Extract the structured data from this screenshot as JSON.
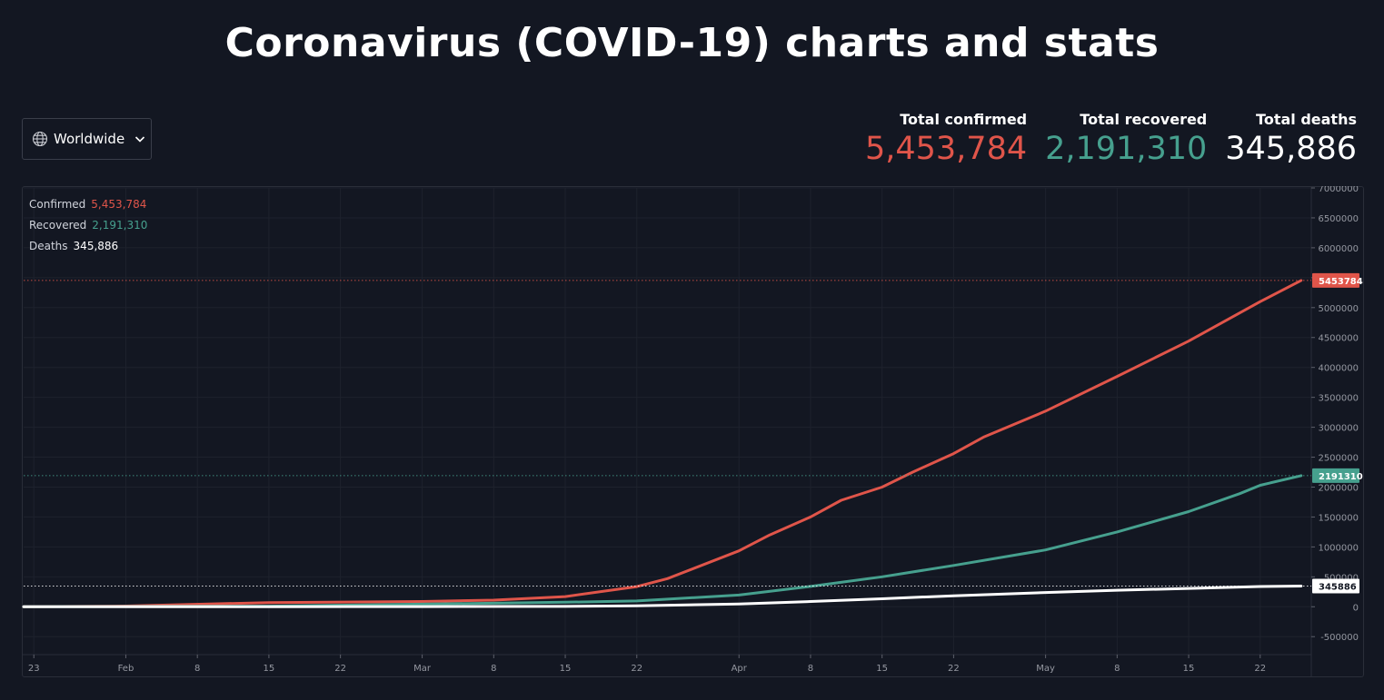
{
  "title": "Coronavirus (COVID-19) charts and stats",
  "region_selector": {
    "label": "Worldwide",
    "icon": "globe-icon",
    "chevron": "chevron-down-icon"
  },
  "stats": [
    {
      "label": "Total confirmed",
      "value": "5,453,784",
      "color": "#e0554a"
    },
    {
      "label": "Total recovered",
      "value": "2,191,310",
      "color": "#46a08e"
    },
    {
      "label": "Total deaths",
      "value": "345,886",
      "color": "#ffffff"
    }
  ],
  "legend": [
    {
      "name": "Confirmed",
      "value": "5,453,784",
      "color": "#e0554a"
    },
    {
      "name": "Recovered",
      "value": "2,191,310",
      "color": "#46a08e"
    },
    {
      "name": "Deaths",
      "value": "345,886",
      "color": "#ffffff"
    }
  ],
  "chart_data": {
    "type": "line",
    "x_ticks": [
      {
        "label": "23",
        "date": "2020-01-23"
      },
      {
        "label": "Feb",
        "date": "2020-02-01"
      },
      {
        "label": "8",
        "date": "2020-02-08"
      },
      {
        "label": "15",
        "date": "2020-02-15"
      },
      {
        "label": "22",
        "date": "2020-02-22"
      },
      {
        "label": "Mar",
        "date": "2020-03-01"
      },
      {
        "label": "8",
        "date": "2020-03-08"
      },
      {
        "label": "15",
        "date": "2020-03-15"
      },
      {
        "label": "22",
        "date": "2020-03-22"
      },
      {
        "label": "Apr",
        "date": "2020-04-01"
      },
      {
        "label": "8",
        "date": "2020-04-08"
      },
      {
        "label": "15",
        "date": "2020-04-15"
      },
      {
        "label": "22",
        "date": "2020-04-22"
      },
      {
        "label": "May",
        "date": "2020-05-01"
      },
      {
        "label": "8",
        "date": "2020-05-08"
      },
      {
        "label": "15",
        "date": "2020-05-15"
      },
      {
        "label": "22",
        "date": "2020-05-22"
      }
    ],
    "y_ticks": [
      "7000000",
      "6500000",
      "6000000",
      "5500000",
      "5000000",
      "4500000",
      "4000000",
      "3500000",
      "3000000",
      "2500000",
      "2000000",
      "1500000",
      "1000000",
      "500000",
      "0",
      "-500000"
    ],
    "y_tick_values": [
      7000000,
      6500000,
      6000000,
      5500000,
      5000000,
      4500000,
      4000000,
      3500000,
      3000000,
      2500000,
      2000000,
      1500000,
      1000000,
      500000,
      0,
      -500000
    ],
    "ylim": [
      -800000,
      7000000
    ],
    "xlim": [
      "2020-01-22",
      "2020-05-27"
    ],
    "grid": true,
    "legend_position": "top-left",
    "series": [
      {
        "name": "Confirmed",
        "color": "#e0554a",
        "last_label": "5453784",
        "points": [
          [
            "2020-01-22",
            555
          ],
          [
            "2020-02-01",
            12000
          ],
          [
            "2020-02-15",
            69000
          ],
          [
            "2020-03-01",
            88000
          ],
          [
            "2020-03-08",
            110000
          ],
          [
            "2020-03-15",
            169000
          ],
          [
            "2020-03-22",
            337000
          ],
          [
            "2020-03-25",
            470000
          ],
          [
            "2020-04-01",
            935000
          ],
          [
            "2020-04-04",
            1200000
          ],
          [
            "2020-04-08",
            1500000
          ],
          [
            "2020-04-11",
            1780000
          ],
          [
            "2020-04-15",
            2000000
          ],
          [
            "2020-04-18",
            2250000
          ],
          [
            "2020-04-22",
            2560000
          ],
          [
            "2020-04-25",
            2840000
          ],
          [
            "2020-05-01",
            3270000
          ],
          [
            "2020-05-08",
            3850000
          ],
          [
            "2020-05-15",
            4440000
          ],
          [
            "2020-05-22",
            5100000
          ],
          [
            "2020-05-26",
            5453784
          ]
        ]
      },
      {
        "name": "Recovered",
        "color": "#46a08e",
        "last_label": "2191310",
        "points": [
          [
            "2020-01-22",
            28
          ],
          [
            "2020-02-15",
            10000
          ],
          [
            "2020-03-01",
            43000
          ],
          [
            "2020-03-15",
            75000
          ],
          [
            "2020-03-22",
            97000
          ],
          [
            "2020-04-01",
            195000
          ],
          [
            "2020-04-08",
            340000
          ],
          [
            "2020-04-15",
            500000
          ],
          [
            "2020-04-22",
            690000
          ],
          [
            "2020-05-01",
            950000
          ],
          [
            "2020-05-08",
            1250000
          ],
          [
            "2020-05-15",
            1590000
          ],
          [
            "2020-05-20",
            1890000
          ],
          [
            "2020-05-22",
            2030000
          ],
          [
            "2020-05-26",
            2191310
          ]
        ]
      },
      {
        "name": "Deaths",
        "color": "#ffffff",
        "last_label": "345886",
        "points": [
          [
            "2020-01-22",
            17
          ],
          [
            "2020-02-15",
            1500
          ],
          [
            "2020-03-01",
            3000
          ],
          [
            "2020-03-15",
            6500
          ],
          [
            "2020-03-22",
            14600
          ],
          [
            "2020-04-01",
            47000
          ],
          [
            "2020-04-08",
            88000
          ],
          [
            "2020-04-15",
            134000
          ],
          [
            "2020-04-22",
            183000
          ],
          [
            "2020-05-01",
            238000
          ],
          [
            "2020-05-08",
            276000
          ],
          [
            "2020-05-15",
            307000
          ],
          [
            "2020-05-22",
            338000
          ],
          [
            "2020-05-26",
            345886
          ]
        ]
      }
    ]
  }
}
